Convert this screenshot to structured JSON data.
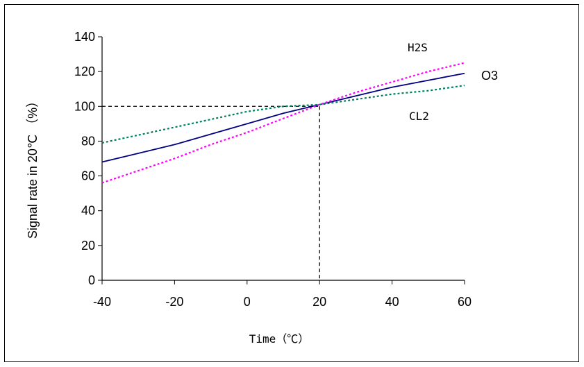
{
  "chart_data": {
    "type": "line",
    "title": "",
    "xlabel": "Time（℃）",
    "ylabel": "Signal rate in 20℃ （%）",
    "xlim": [
      -40,
      60
    ],
    "ylim": [
      0,
      140
    ],
    "x_ticks": [
      "-40",
      "-20",
      "0",
      "20",
      "40",
      "60"
    ],
    "y_ticks": [
      "0",
      "20",
      "40",
      "60",
      "80",
      "100",
      "120",
      "140"
    ],
    "grid": false,
    "legend": "none",
    "x": [
      -40,
      -30,
      -20,
      -10,
      0,
      10,
      20,
      30,
      40,
      50,
      60
    ],
    "series": [
      {
        "name": "O3",
        "values": [
          68,
          73,
          78,
          84,
          90,
          96,
          101,
          106,
          111,
          115,
          119
        ],
        "color": "#000080",
        "style": "solid"
      },
      {
        "name": "H2S",
        "values": [
          56,
          63,
          70,
          78,
          85,
          93,
          101,
          108,
          114,
          120,
          125
        ],
        "color": "#ff00ff",
        "style": "dotted"
      },
      {
        "name": "CL2",
        "values": [
          79,
          83.5,
          88,
          92.5,
          97,
          100,
          101,
          104,
          107,
          109,
          112
        ],
        "color": "#008060",
        "style": "dotted"
      }
    ],
    "reference": {
      "x": 20,
      "y": 100
    }
  }
}
